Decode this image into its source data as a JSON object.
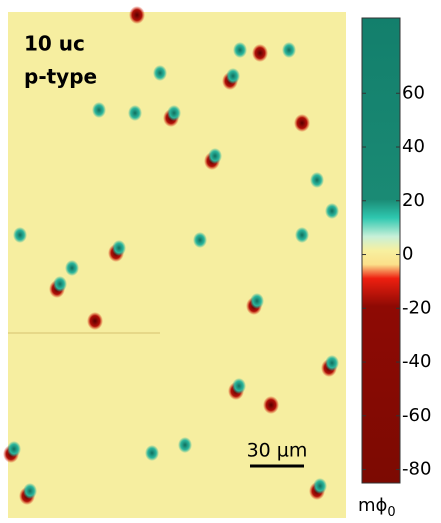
{
  "image": {
    "labels": [
      "10 uc",
      "p-type"
    ],
    "scale_bar": "30 µm"
  },
  "colorbar": {
    "lim": [
      -85,
      88
    ],
    "ticks": [
      60,
      40,
      20,
      0,
      -20,
      -40,
      -60,
      -80
    ],
    "unit": "mϕ",
    "unit_subscript": "0"
  }
}
